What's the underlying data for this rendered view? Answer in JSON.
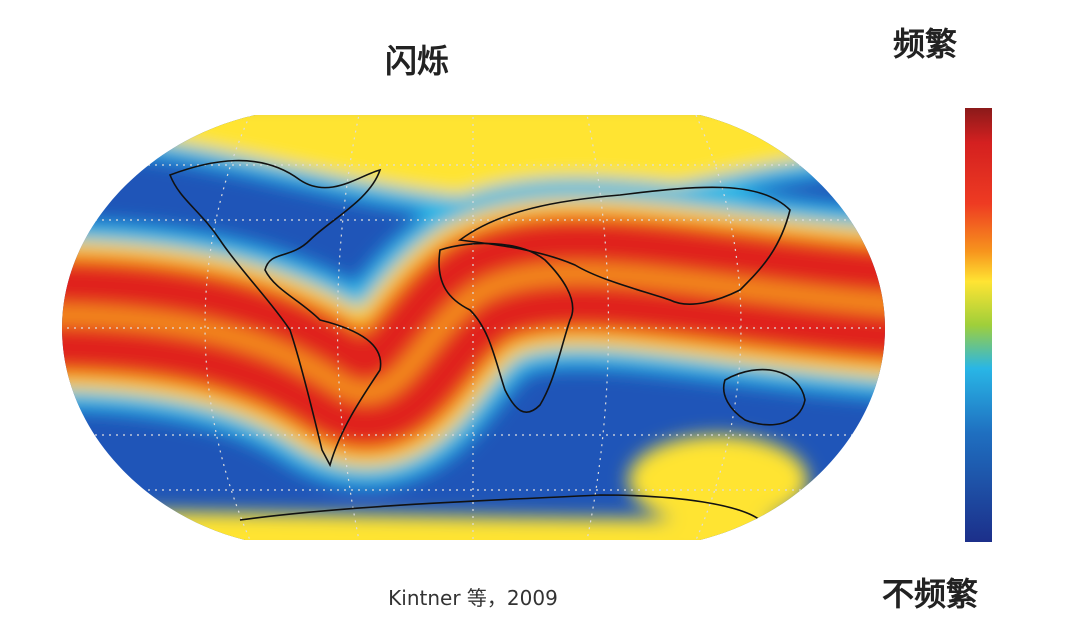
{
  "title": "闪烁",
  "legend": {
    "high": "频繁",
    "low": "不频繁"
  },
  "caption": "Kintner 等，2009"
}
